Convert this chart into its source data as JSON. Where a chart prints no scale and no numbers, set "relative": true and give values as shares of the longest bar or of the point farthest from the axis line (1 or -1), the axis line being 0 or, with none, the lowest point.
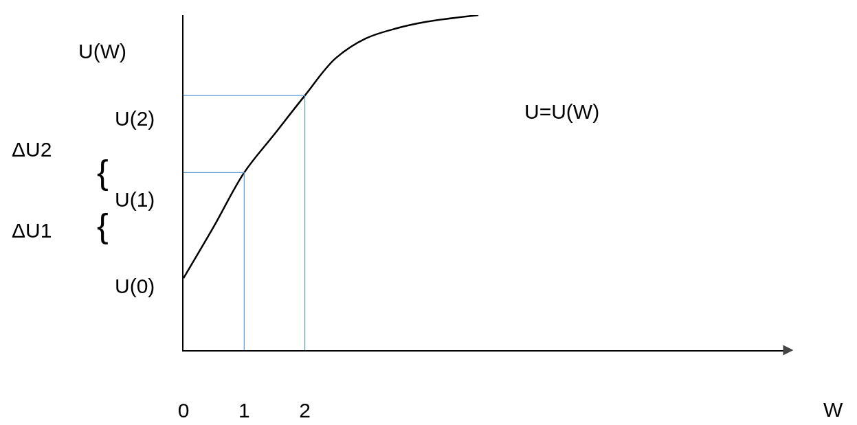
{
  "chart_data": {
    "type": "line",
    "relative": true,
    "xlabel": "W",
    "ylabel": "U(W)",
    "x": [
      0,
      0.5,
      1,
      1.5,
      2,
      2.5,
      3,
      3.5,
      4,
      4.86
    ],
    "series": [
      {
        "color": "#000000",
        "values": [
          0.215,
          0.369,
          0.53,
          0.645,
          0.76,
          0.87,
          0.93,
          0.96,
          0.98,
          1
        ]
      },
      {
        "color": "#5b9bd5",
        "x": [
          0,
          1,
          1
        ],
        "values": [
          0.53,
          0.53,
          0
        ]
      },
      {
        "color": "#5b9bd5",
        "x": [
          0,
          2,
          2
        ],
        "values": [
          0.76,
          0.76,
          0
        ]
      }
    ],
    "xlim": [
      0,
      10
    ],
    "xticks": [
      0,
      1,
      2
    ],
    "grid": false,
    "marker": "none",
    "line_style": "solid",
    "annotations": [
      "U(0)",
      "U(1)",
      "U(2)",
      "U=U(W)",
      "ΔU2",
      "ΔU1",
      "{",
      "{"
    ]
  }
}
